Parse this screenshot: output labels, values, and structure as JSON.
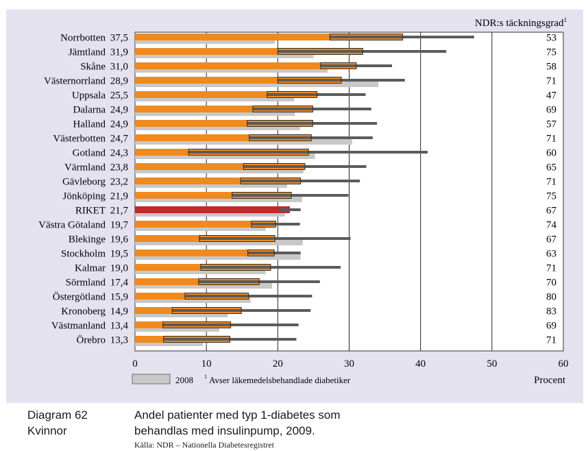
{
  "colors": {
    "panel": "#e5e2f0",
    "plot_bg": "#ffffff",
    "bar_2009": "#f0891e",
    "bar_riket": "#c0282a",
    "bar_2008": "#c8c8c8",
    "ci_line": "#5b5b5b",
    "bar_outline": "#3a2a1a"
  },
  "chart_data": {
    "type": "bar",
    "orientation": "horizontal",
    "title": "Andel patienter med typ 1-diabetes som behandlas med insulinpump, 2009.",
    "xlabel": "Procent",
    "xlim": [
      0,
      60
    ],
    "xticks": [
      0,
      10,
      20,
      30,
      40,
      50,
      60
    ],
    "grid_x": true,
    "right_column_header": "NDR:s täckningsgrad",
    "right_column_header_sup": "1",
    "legend": {
      "label": "2008",
      "footnote_sup": "1",
      "footnote_text": "Avser läkemedelsbehandlade diabetiker",
      "position": "bottom-left"
    },
    "regions": [
      {
        "name": "Norrbotten",
        "value_label": "37,5",
        "value_2009": 37.5,
        "ci_low": 27.3,
        "ci_high": 47.5,
        "value_2008": 19.6,
        "coverage": 53
      },
      {
        "name": "Jämtland",
        "value_label": "31,9",
        "value_2009": 31.9,
        "ci_low": 20.0,
        "ci_high": 43.6,
        "value_2008": 25.0,
        "coverage": 75
      },
      {
        "name": "Skåne",
        "value_label": "31,0",
        "value_2009": 31.0,
        "ci_low": 26.0,
        "ci_high": 36.0,
        "value_2008": 27.0,
        "coverage": 58
      },
      {
        "name": "Västernorrland",
        "value_label": "28,9",
        "value_2009": 28.9,
        "ci_low": 20.0,
        "ci_high": 37.8,
        "value_2008": 34.1,
        "coverage": 71
      },
      {
        "name": "Uppsala",
        "value_label": "25,5",
        "value_2009": 25.5,
        "ci_low": 18.5,
        "ci_high": 32.3,
        "value_2008": 22.3,
        "coverage": 47
      },
      {
        "name": "Dalarna",
        "value_label": "24,9",
        "value_2009": 24.9,
        "ci_low": 16.5,
        "ci_high": 33.1,
        "value_2008": 22.4,
        "coverage": 69
      },
      {
        "name": "Halland",
        "value_label": "24,9",
        "value_2009": 24.9,
        "ci_low": 15.7,
        "ci_high": 33.9,
        "value_2008": 23.1,
        "coverage": 57
      },
      {
        "name": "Västerbotten",
        "value_label": "24,7",
        "value_2009": 24.7,
        "ci_low": 16.0,
        "ci_high": 33.3,
        "value_2008": 30.4,
        "coverage": 71
      },
      {
        "name": "Gotland",
        "value_label": "24,3",
        "value_2009": 24.3,
        "ci_low": 7.5,
        "ci_high": 41.0,
        "value_2008": 25.2,
        "coverage": 60
      },
      {
        "name": "Värmland",
        "value_label": "23,8",
        "value_2009": 23.8,
        "ci_low": 15.2,
        "ci_high": 32.4,
        "value_2008": 23.6,
        "coverage": 65
      },
      {
        "name": "Gävleborg",
        "value_label": "23,2",
        "value_2009": 23.2,
        "ci_low": 14.8,
        "ci_high": 31.5,
        "value_2008": 21.3,
        "coverage": 71
      },
      {
        "name": "Jönköping",
        "value_label": "21,9",
        "value_2009": 21.9,
        "ci_low": 13.6,
        "ci_high": 29.9,
        "value_2008": 23.4,
        "coverage": 75
      },
      {
        "name": "RIKET",
        "value_label": "21,7",
        "value_2009": 21.7,
        "ci_low": 20.2,
        "ci_high": 23.2,
        "value_2008": 21.0,
        "coverage": 67,
        "highlight": true
      },
      {
        "name": "Västra Götaland",
        "value_label": "19,7",
        "value_2009": 19.7,
        "ci_low": 16.3,
        "ci_high": 23.1,
        "value_2008": 18.3,
        "coverage": 74
      },
      {
        "name": "Blekinge",
        "value_label": "19,6",
        "value_2009": 19.6,
        "ci_low": 9.0,
        "ci_high": 30.2,
        "value_2008": 23.5,
        "coverage": 67
      },
      {
        "name": "Stockholm",
        "value_label": "19,5",
        "value_2009": 19.5,
        "ci_low": 15.8,
        "ci_high": 23.2,
        "value_2008": 23.2,
        "coverage": 63
      },
      {
        "name": "Kalmar",
        "value_label": "19,0",
        "value_2009": 19.0,
        "ci_low": 9.2,
        "ci_high": 28.8,
        "value_2008": 18.3,
        "coverage": 71
      },
      {
        "name": "Sörmland",
        "value_label": "17,4",
        "value_2009": 17.4,
        "ci_low": 8.9,
        "ci_high": 25.9,
        "value_2008": 19.2,
        "coverage": 70
      },
      {
        "name": "Östergötland",
        "value_label": "15,9",
        "value_2009": 15.9,
        "ci_low": 7.0,
        "ci_high": 24.8,
        "value_2008": 16.2,
        "coverage": 80
      },
      {
        "name": "Kronoberg",
        "value_label": "14,9",
        "value_2009": 14.9,
        "ci_low": 5.2,
        "ci_high": 24.6,
        "value_2008": 13.0,
        "coverage": 83
      },
      {
        "name": "Västmanland",
        "value_label": "13,4",
        "value_2009": 13.4,
        "ci_low": 3.9,
        "ci_high": 22.9,
        "value_2008": 11.8,
        "coverage": 69
      },
      {
        "name": "Örebro",
        "value_label": "13,3",
        "value_2009": 13.3,
        "ci_low": 4.0,
        "ci_high": 22.6,
        "value_2008": 9.5,
        "coverage": 71
      }
    ]
  },
  "caption": {
    "diagram_label": "Diagram 62",
    "subgroup": "Kvinnor",
    "title_line1": "Andel patienter med typ 1-diabetes som",
    "title_line2": "behandlas med insulinpump, 2009.",
    "source": "Källa: NDR – Nationella Diabetesregistret"
  }
}
